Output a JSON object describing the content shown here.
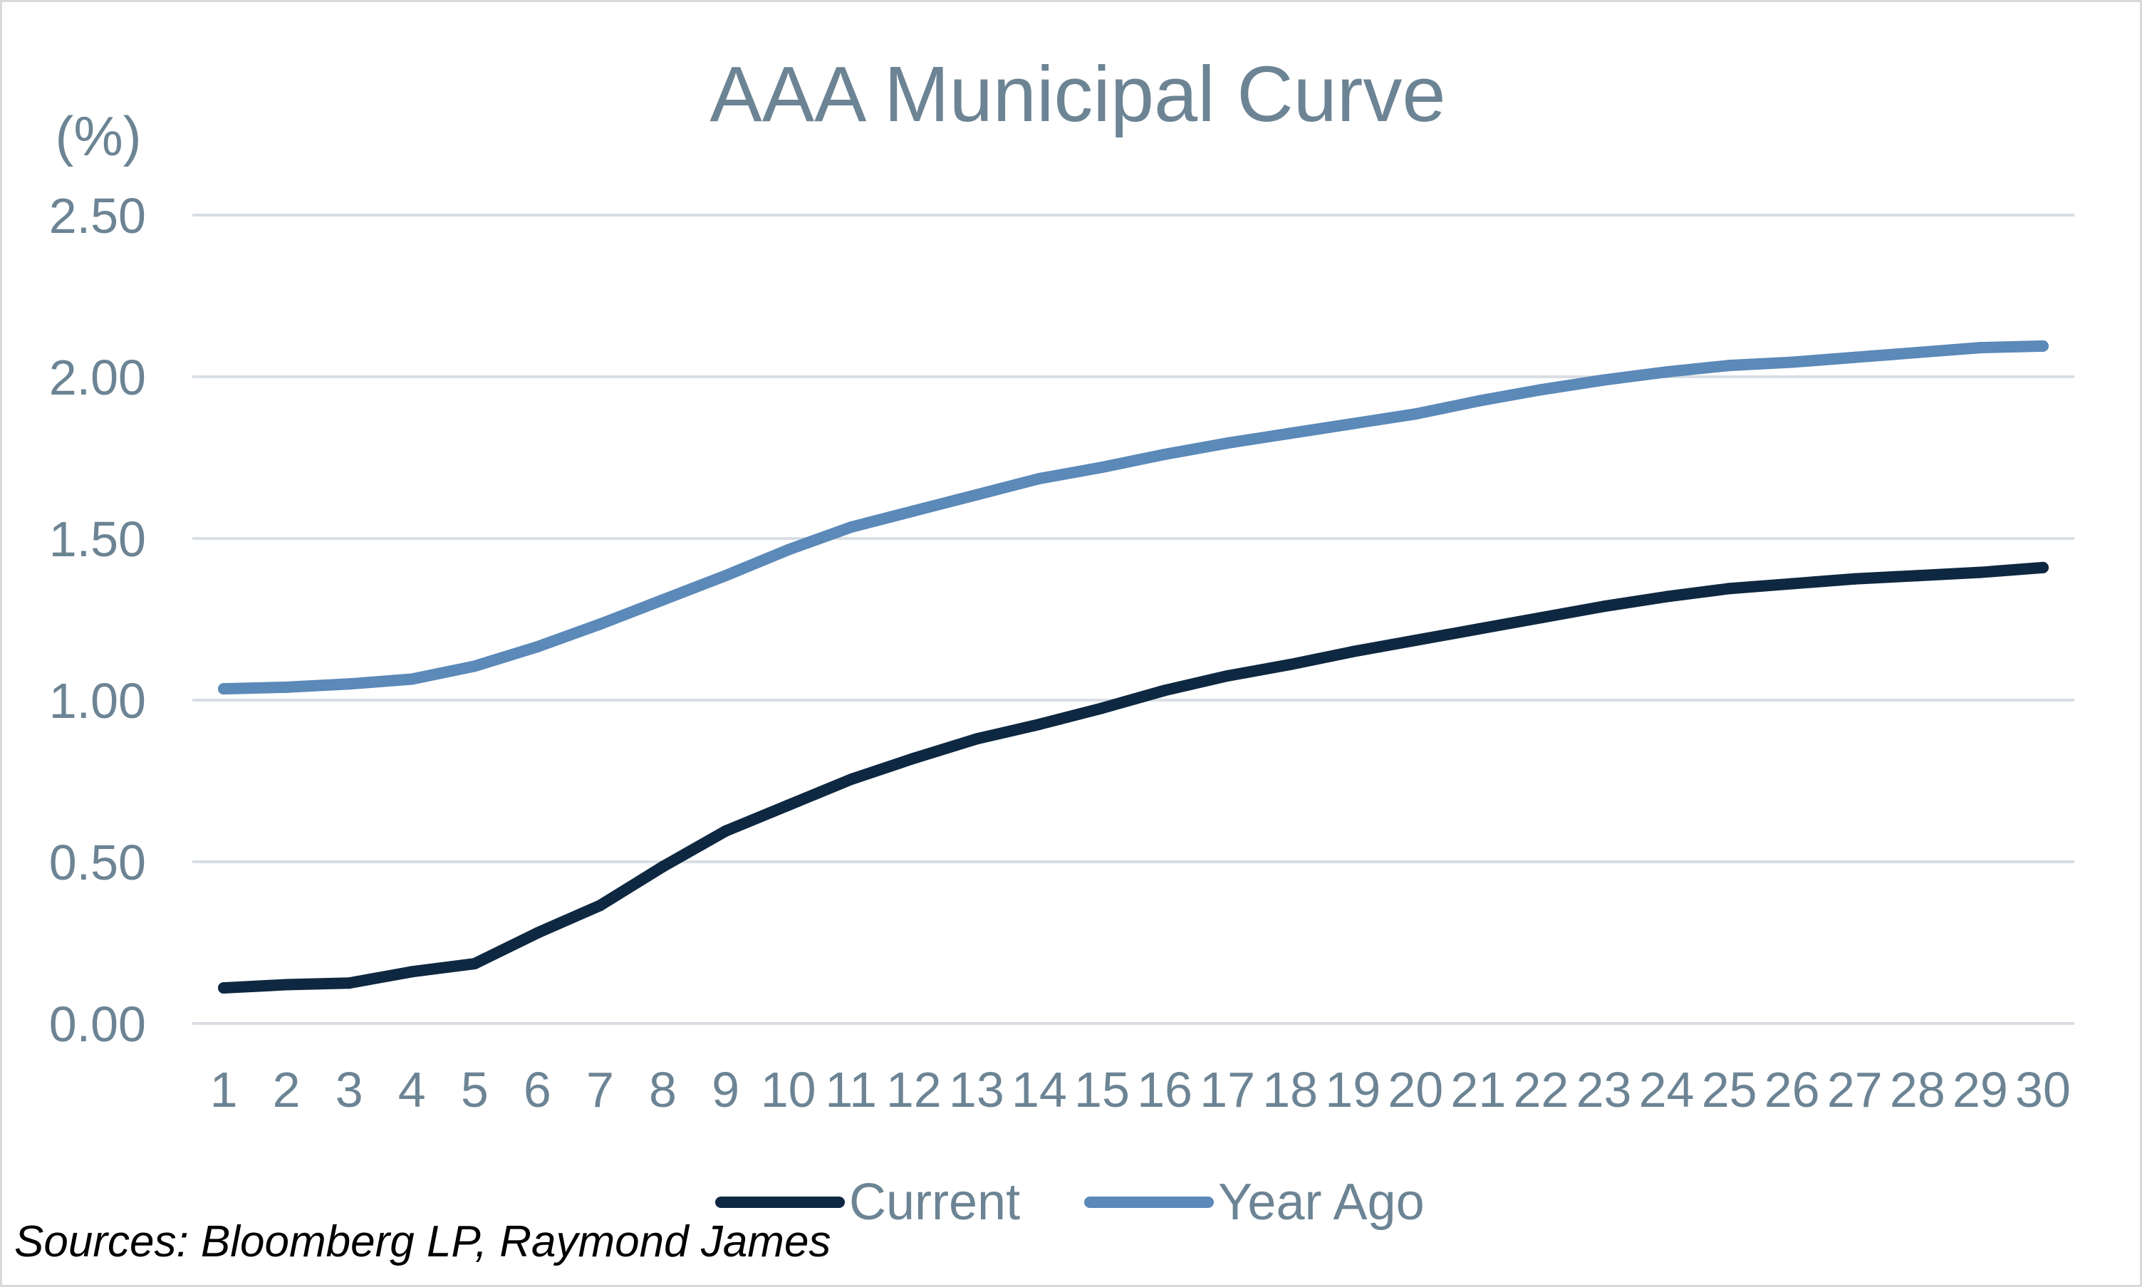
{
  "chart_data": {
    "type": "line",
    "title": "AAA Municipal Curve",
    "ylabel": "(%)",
    "xlabel": "",
    "ylim": [
      0,
      2.5
    ],
    "yticks": [
      "0.00",
      "0.50",
      "1.00",
      "1.50",
      "2.00",
      "2.50"
    ],
    "categories": [
      "1",
      "2",
      "3",
      "4",
      "5",
      "6",
      "7",
      "8",
      "9",
      "10",
      "11",
      "12",
      "13",
      "14",
      "15",
      "16",
      "17",
      "18",
      "19",
      "20",
      "21",
      "22",
      "23",
      "24",
      "25",
      "26",
      "27",
      "28",
      "29",
      "30"
    ],
    "series": [
      {
        "name": "Current",
        "color": "#0e2841",
        "values": [
          0.11,
          0.12,
          0.125,
          0.16,
          0.185,
          0.28,
          0.365,
          0.485,
          0.595,
          0.675,
          0.755,
          0.82,
          0.88,
          0.925,
          0.975,
          1.03,
          1.075,
          1.11,
          1.15,
          1.185,
          1.22,
          1.255,
          1.29,
          1.32,
          1.345,
          1.36,
          1.375,
          1.385,
          1.395,
          1.41
        ]
      },
      {
        "name": "Year Ago",
        "color": "#5b89b8",
        "values": [
          1.035,
          1.04,
          1.05,
          1.065,
          1.105,
          1.165,
          1.235,
          1.31,
          1.385,
          1.465,
          1.535,
          1.585,
          1.635,
          1.685,
          1.72,
          1.76,
          1.795,
          1.825,
          1.855,
          1.885,
          1.925,
          1.96,
          1.99,
          2.015,
          2.035,
          2.045,
          2.06,
          2.075,
          2.09,
          2.095
        ]
      }
    ],
    "grid": true,
    "legend_position": "bottom"
  },
  "footer": {
    "source": "Sources: Bloomberg LP, Raymond James"
  },
  "colors": {
    "text": "#6c8494",
    "grid": "#d9dee3"
  }
}
